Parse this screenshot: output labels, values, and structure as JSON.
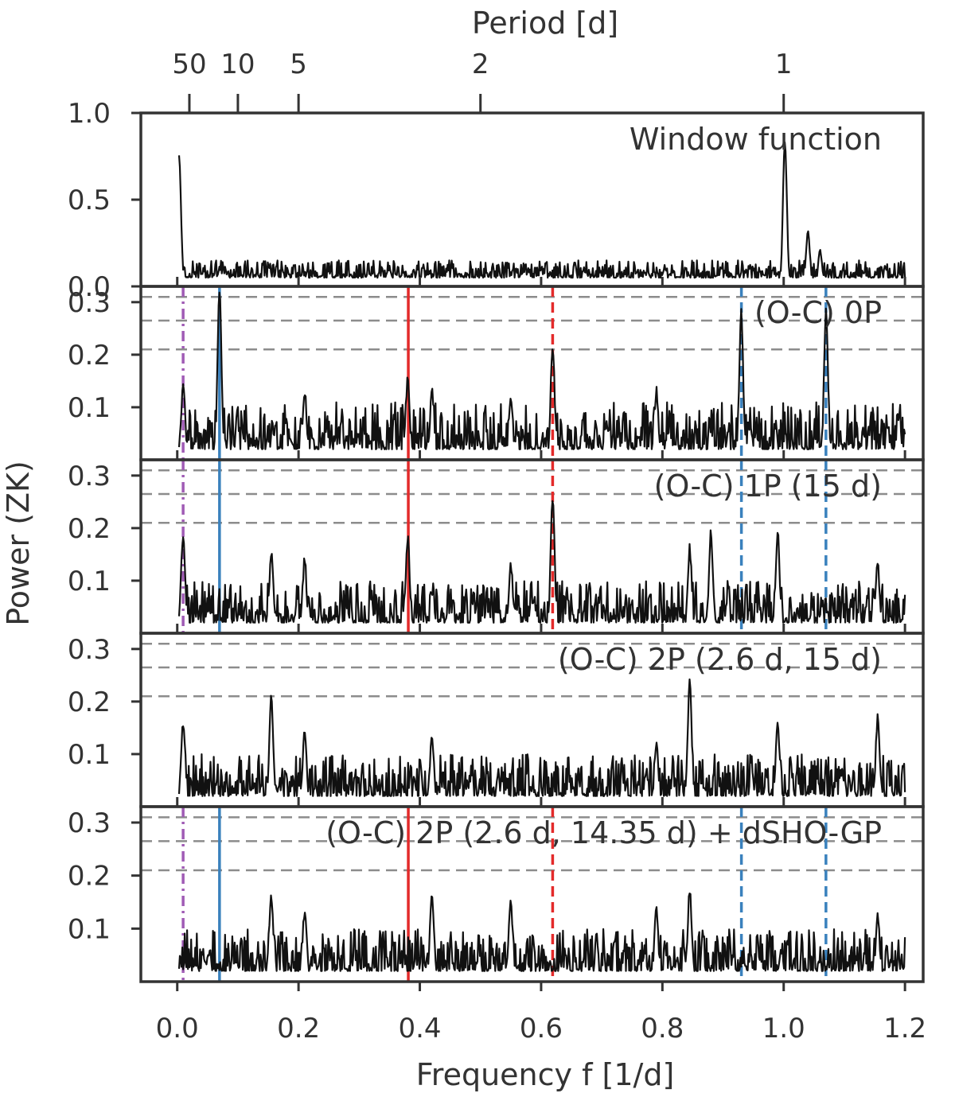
{
  "chart_data": {
    "type": "line",
    "xlabel": "Frequency f [1/d]",
    "ylabel": "Power (ZK)",
    "xlim": [
      -0.06,
      1.23
    ],
    "x_ticks": [
      "0.0",
      "0.2",
      "0.4",
      "0.6",
      "0.8",
      "1.0",
      "1.2"
    ],
    "x_tick_values": [
      0.0,
      0.2,
      0.4,
      0.6,
      0.8,
      1.0,
      1.2
    ],
    "top_axis": {
      "label": "Period [d]",
      "ticks": [
        "50",
        "10",
        "5",
        "2",
        "1"
      ],
      "tick_periods": [
        50,
        10,
        5,
        2,
        1
      ]
    },
    "fap_levels": [
      0.31,
      0.265,
      0.21
    ],
    "vertical_markers": [
      {
        "freq": 0.0097,
        "color": "#a05bb5",
        "style": "dashdot"
      },
      {
        "freq": 0.0697,
        "color": "#3a81bd",
        "style": "solid"
      },
      {
        "freq": 0.381,
        "color": "#e32a2a",
        "style": "solid"
      },
      {
        "freq": 0.619,
        "color": "#e32a2a",
        "style": "dashed"
      },
      {
        "freq": 0.9303,
        "color": "#3a81bd",
        "style": "dashed"
      },
      {
        "freq": 1.0697,
        "color": "#3a81bd",
        "style": "dashed"
      }
    ],
    "panels": [
      {
        "title": "Window function",
        "ylim": [
          0,
          1.0
        ],
        "yticks": [
          "0.0",
          "0.5",
          "1.0"
        ],
        "ytick_values": [
          0.0,
          0.5,
          1.0
        ],
        "show_fap": false,
        "show_markers": false,
        "peaks": [
          [
            0.003,
            0.75
          ],
          [
            1.002,
            0.82
          ],
          [
            1.04,
            0.3
          ],
          [
            1.06,
            0.2
          ]
        ],
        "baseline": 0.05,
        "noise": 0.1,
        "seed": 11
      },
      {
        "title": "(O-C) 0P",
        "ylim": [
          0,
          0.33
        ],
        "yticks": [
          "0.1",
          "0.2",
          "0.3"
        ],
        "ytick_values": [
          0.1,
          0.2,
          0.3
        ],
        "show_fap": true,
        "show_markers": true,
        "peaks": [
          [
            0.0097,
            0.13
          ],
          [
            0.0697,
            0.31
          ],
          [
            0.21,
            0.12
          ],
          [
            0.38,
            0.14
          ],
          [
            0.42,
            0.12
          ],
          [
            0.55,
            0.11
          ],
          [
            0.619,
            0.21
          ],
          [
            0.79,
            0.12
          ],
          [
            0.93,
            0.27
          ],
          [
            1.0697,
            0.27
          ],
          [
            1.19,
            0.07
          ]
        ],
        "baseline": 0.02,
        "noise": 0.09,
        "seed": 23
      },
      {
        "title": "(O-C) 1P (15 d)",
        "ylim": [
          0,
          0.33
        ],
        "yticks": [
          "0.1",
          "0.2",
          "0.3"
        ],
        "ytick_values": [
          0.1,
          0.2,
          0.3
        ],
        "show_fap": true,
        "show_markers": true,
        "peaks": [
          [
            0.0097,
            0.18
          ],
          [
            0.155,
            0.14
          ],
          [
            0.21,
            0.13
          ],
          [
            0.38,
            0.17
          ],
          [
            0.55,
            0.12
          ],
          [
            0.619,
            0.25
          ],
          [
            0.845,
            0.15
          ],
          [
            0.88,
            0.18
          ],
          [
            0.99,
            0.18
          ],
          [
            1.155,
            0.12
          ]
        ],
        "baseline": 0.02,
        "noise": 0.08,
        "seed": 37
      },
      {
        "title": "(O-C) 2P (2.6 d, 15 d)",
        "ylim": [
          0,
          0.33
        ],
        "yticks": [
          "0.1",
          "0.2",
          "0.3"
        ],
        "ytick_values": [
          0.1,
          0.2,
          0.3
        ],
        "show_fap": true,
        "show_markers": false,
        "peaks": [
          [
            0.0097,
            0.15
          ],
          [
            0.155,
            0.2
          ],
          [
            0.21,
            0.13
          ],
          [
            0.42,
            0.12
          ],
          [
            0.79,
            0.11
          ],
          [
            0.845,
            0.23
          ],
          [
            0.99,
            0.15
          ],
          [
            1.155,
            0.16
          ]
        ],
        "baseline": 0.02,
        "noise": 0.08,
        "seed": 53
      },
      {
        "title": "(O-C) 2P (2.6 d, 14.35 d) + dSHO-GP",
        "ylim": [
          0,
          0.33
        ],
        "yticks": [
          "0.1",
          "0.2",
          "0.3"
        ],
        "ytick_values": [
          0.1,
          0.2,
          0.3
        ],
        "show_fap": true,
        "show_markers": true,
        "peaks": [
          [
            0.155,
            0.15
          ],
          [
            0.21,
            0.12
          ],
          [
            0.42,
            0.15
          ],
          [
            0.55,
            0.14
          ],
          [
            0.79,
            0.13
          ],
          [
            0.845,
            0.16
          ],
          [
            1.155,
            0.11
          ]
        ],
        "baseline": 0.02,
        "noise": 0.08,
        "seed": 71
      }
    ]
  }
}
